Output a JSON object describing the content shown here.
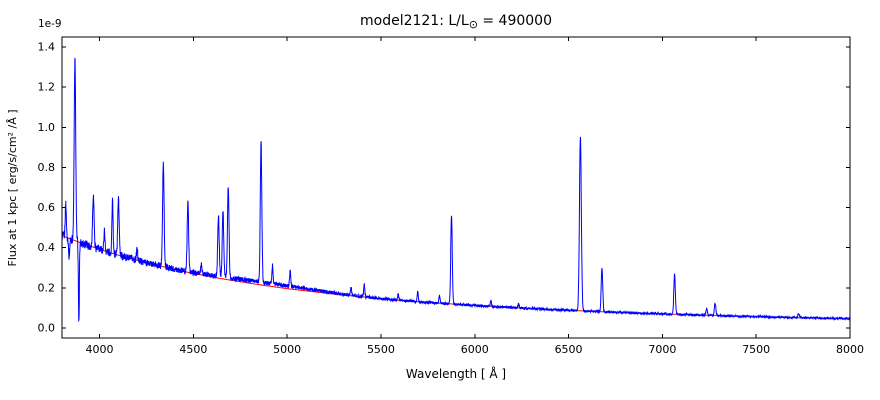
{
  "figure": {
    "background": "#ffffff",
    "frame_color": "#000000",
    "text_color": "#000000"
  },
  "chart_data": {
    "type": "line",
    "title": "model2121: L/L⊙ = 490000",
    "title_prefix": "model2121: L/L",
    "title_odot": "⊙",
    "title_suffix": " = 490000",
    "xlabel": "Wavelength [ Å ]",
    "ylabel": "Flux at 1 kpc [ erg/s/cm² /Å ]",
    "offset_text": "1e-9",
    "xlim": [
      3800,
      8000
    ],
    "ylim": [
      -0.05,
      1.45
    ],
    "xticks": [
      4000,
      4500,
      5000,
      5500,
      6000,
      6500,
      7000,
      7500,
      8000
    ],
    "yticks": [
      0.0,
      0.2,
      0.4,
      0.6,
      0.8,
      1.0,
      1.2,
      1.4
    ],
    "grid": false,
    "unit_scale": "1e-9 erg/s/cm²/Å",
    "series": [
      {
        "name": "continuum",
        "color": "#ff0000",
        "x_start": 3800,
        "x_step": 100,
        "y": [
          0.46,
          0.424,
          0.392,
          0.363,
          0.337,
          0.314,
          0.292,
          0.272,
          0.254,
          0.238,
          0.223,
          0.209,
          0.196,
          0.185,
          0.174,
          0.164,
          0.155,
          0.146,
          0.138,
          0.131,
          0.124,
          0.118,
          0.112,
          0.107,
          0.102,
          0.097,
          0.092,
          0.088,
          0.084,
          0.08,
          0.077,
          0.073,
          0.07,
          0.067,
          0.064,
          0.062,
          0.059,
          0.057,
          0.054,
          0.052,
          0.05,
          0.048,
          0.046
        ]
      },
      {
        "name": "spectrum",
        "color": "#0000ff",
        "lines": [
          [
            3820,
            0.17,
            3
          ],
          [
            3838,
            -0.09,
            3
          ],
          [
            3869,
            0.91,
            4
          ],
          [
            3890,
            -0.4,
            2.5
          ],
          [
            3967,
            0.26,
            4
          ],
          [
            4026,
            0.1,
            3
          ],
          [
            4069,
            0.27,
            3
          ],
          [
            4101,
            0.28,
            4
          ],
          [
            4200,
            0.06,
            3
          ],
          [
            4340,
            0.51,
            4
          ],
          [
            4471,
            0.34,
            4
          ],
          [
            4542,
            0.05,
            3
          ],
          [
            4634,
            0.3,
            4
          ],
          [
            4658,
            0.33,
            4
          ],
          [
            4686,
            0.46,
            4
          ],
          [
            4861,
            0.7,
            4
          ],
          [
            4900,
            0.015,
            250
          ],
          [
            4922,
            0.09,
            3
          ],
          [
            5016,
            0.08,
            3
          ],
          [
            5340,
            0.04,
            3
          ],
          [
            5411,
            0.06,
            3
          ],
          [
            5592,
            0.03,
            3
          ],
          [
            5696,
            0.05,
            3
          ],
          [
            5812,
            0.04,
            3
          ],
          [
            5876,
            0.44,
            4
          ],
          [
            6086,
            0.03,
            3
          ],
          [
            6234,
            0.02,
            3
          ],
          [
            6563,
            0.865,
            5
          ],
          [
            6678,
            0.22,
            4
          ],
          [
            7065,
            0.2,
            4
          ],
          [
            7236,
            0.03,
            4
          ],
          [
            7281,
            0.06,
            4
          ],
          [
            7726,
            0.02,
            4
          ]
        ],
        "noise": {
          "base": 0.004,
          "left_amp": 0.02,
          "decay": 1000
        }
      }
    ]
  }
}
